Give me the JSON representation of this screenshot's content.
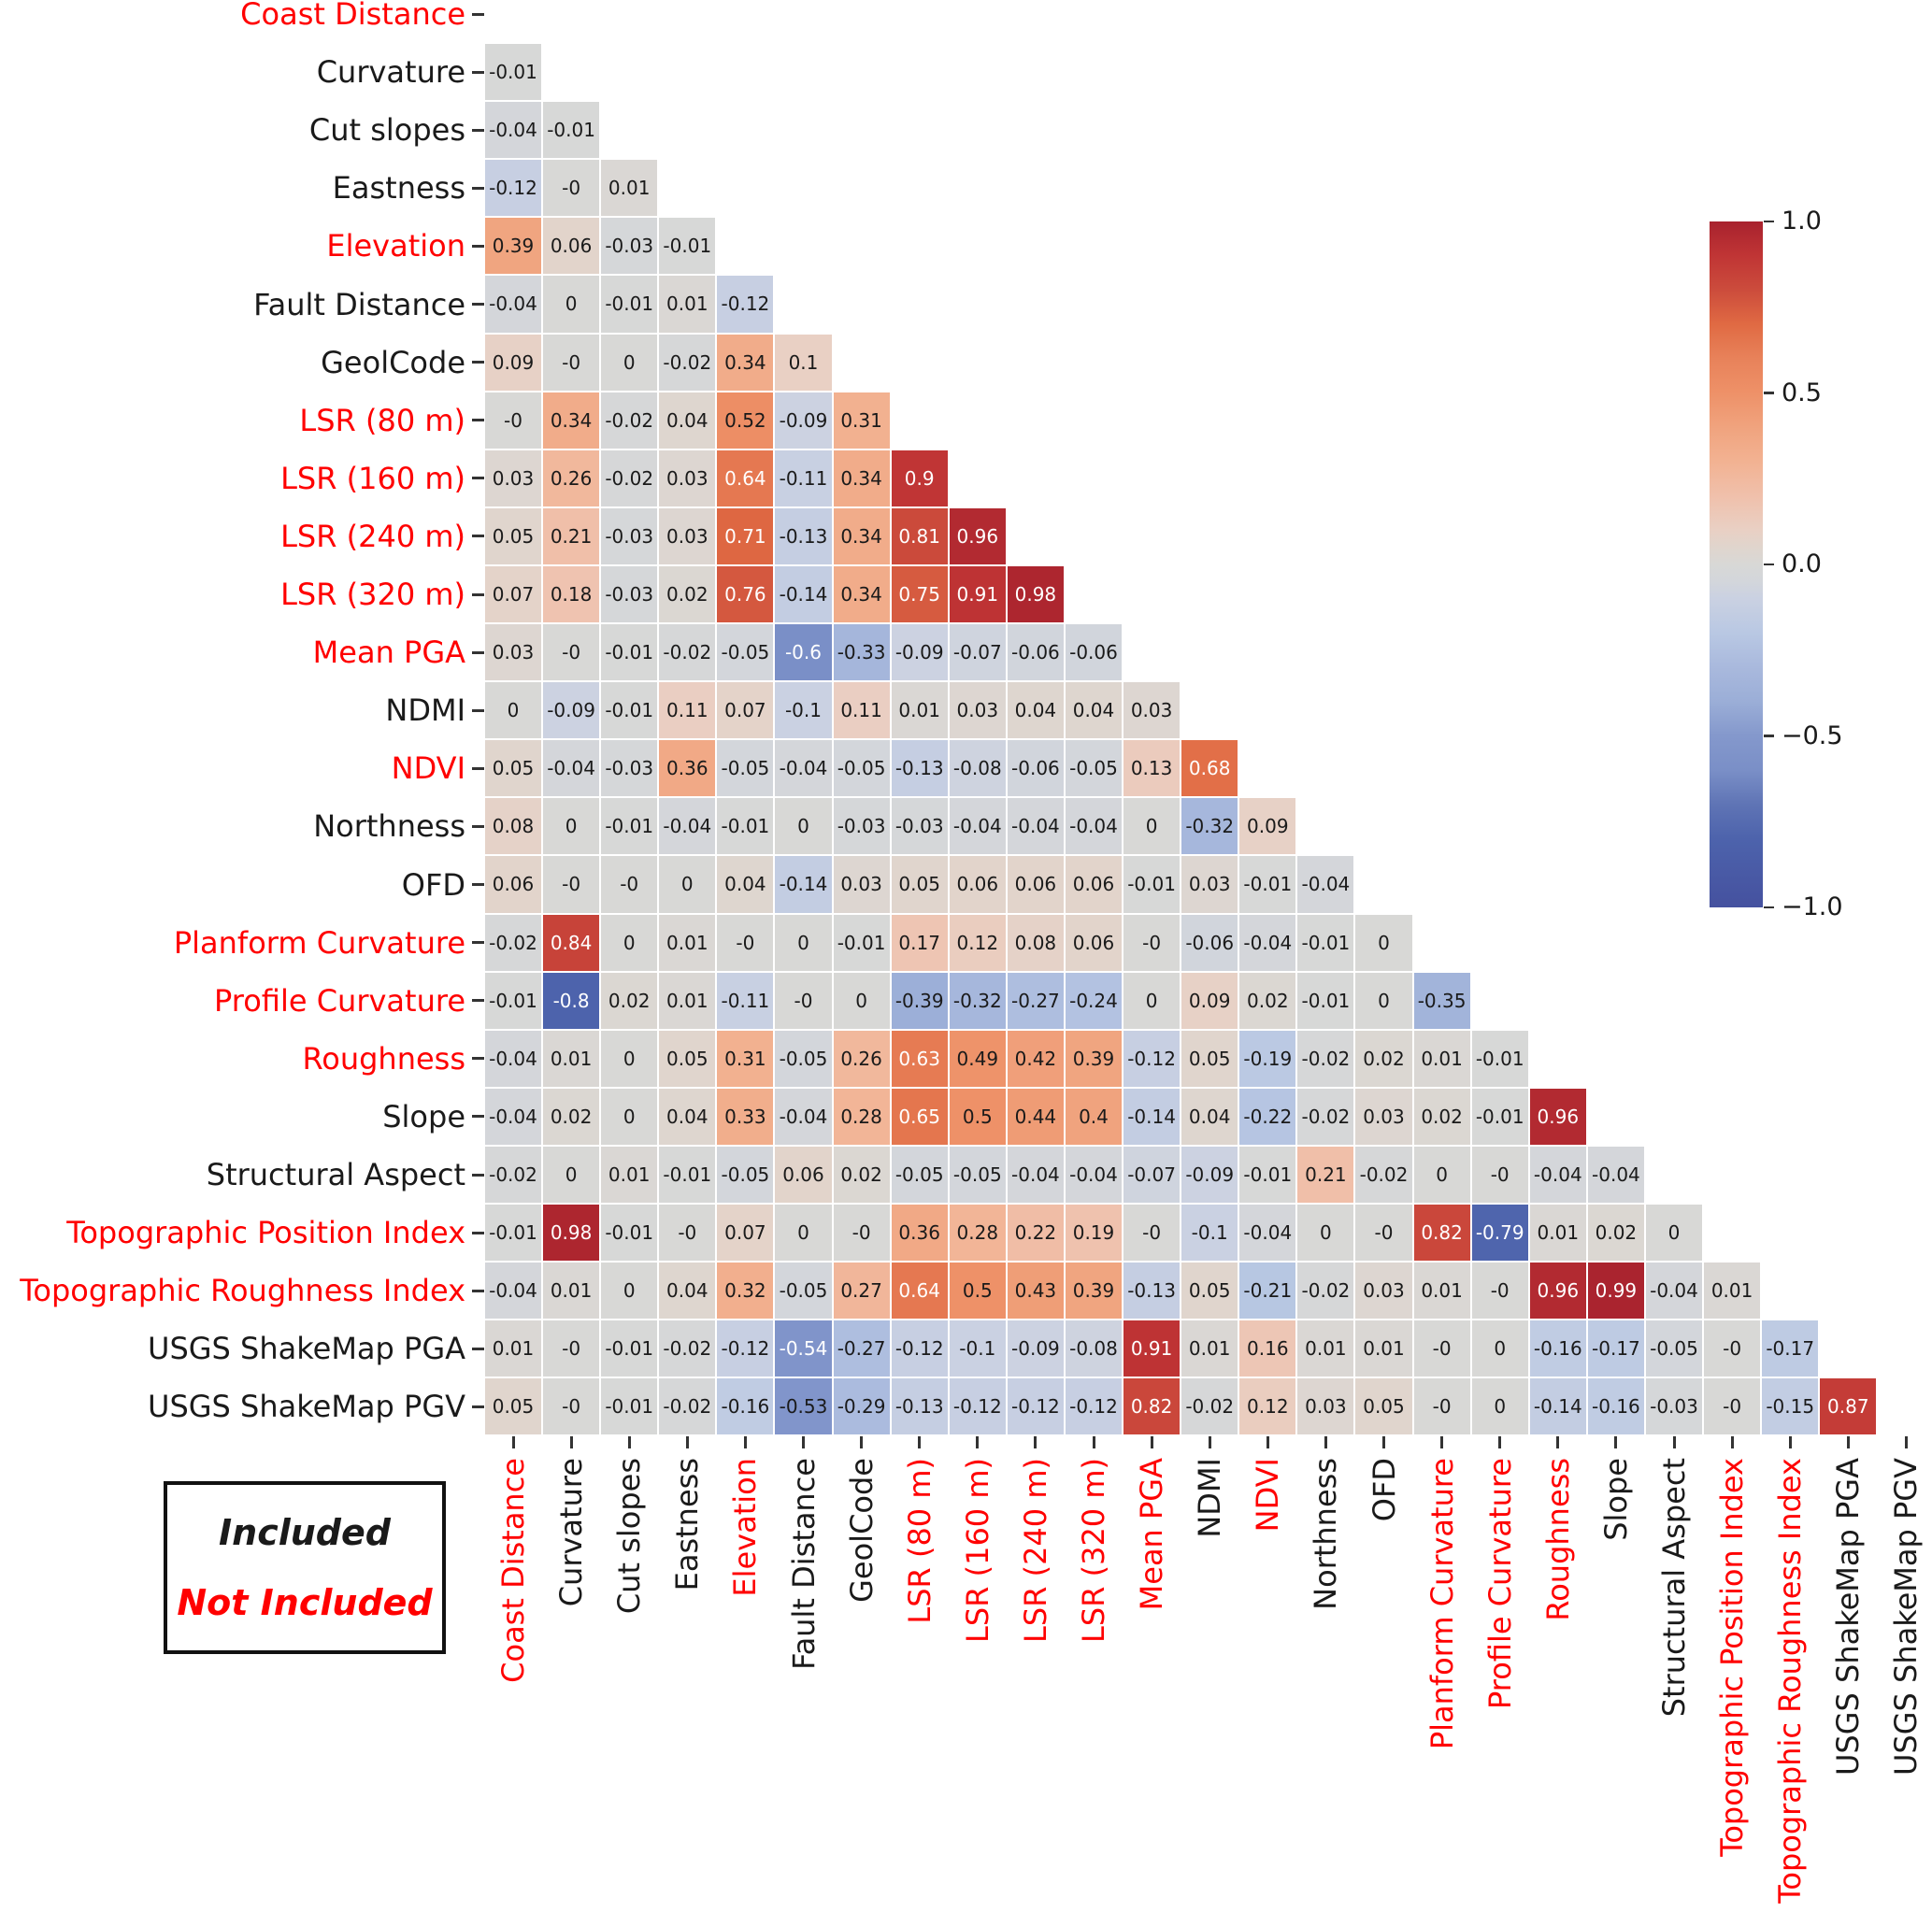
{
  "chart_data": {
    "type": "heatmap",
    "description": "Lower-triangular correlation matrix heatmap of 25 terrain and seismic variables",
    "vmin": -1,
    "vmax": 1,
    "variables": [
      {
        "label": "Coast Distance",
        "included": false
      },
      {
        "label": "Curvature",
        "included": true
      },
      {
        "label": "Cut slopes",
        "included": true
      },
      {
        "label": "Eastness",
        "included": true
      },
      {
        "label": "Elevation",
        "included": false
      },
      {
        "label": "Fault Distance",
        "included": true
      },
      {
        "label": "GeolCode",
        "included": true
      },
      {
        "label": "LSR (80 m)",
        "included": false
      },
      {
        "label": "LSR (160 m)",
        "included": false
      },
      {
        "label": "LSR (240 m)",
        "included": false
      },
      {
        "label": "LSR (320 m)",
        "included": false
      },
      {
        "label": "Mean PGA",
        "included": false
      },
      {
        "label": "NDMI",
        "included": true
      },
      {
        "label": "NDVI",
        "included": false
      },
      {
        "label": "Northness",
        "included": true
      },
      {
        "label": "OFD",
        "included": true
      },
      {
        "label": "Planform Curvature",
        "included": false
      },
      {
        "label": "Profile Curvature",
        "included": false
      },
      {
        "label": "Roughness",
        "included": false
      },
      {
        "label": "Slope",
        "included": true
      },
      {
        "label": "Structural Aspect",
        "included": true
      },
      {
        "label": "Topographic Position Index",
        "included": false
      },
      {
        "label": "Topographic Roughness Index",
        "included": false
      },
      {
        "label": "USGS ShakeMap PGA",
        "included": true
      },
      {
        "label": "USGS ShakeMap PGV",
        "included": true
      }
    ],
    "rows": [
      {
        "label": "Curvature",
        "values": [
          "-0.01"
        ]
      },
      {
        "label": "Cut slopes",
        "values": [
          "-0.04",
          "-0.01"
        ]
      },
      {
        "label": "Eastness",
        "values": [
          "-0.12",
          "-0",
          "0.01"
        ]
      },
      {
        "label": "Elevation",
        "values": [
          "0.39",
          "0.06",
          "-0.03",
          "-0.01"
        ]
      },
      {
        "label": "Fault Distance",
        "values": [
          "-0.04",
          "0",
          "-0.01",
          "0.01",
          "-0.12"
        ]
      },
      {
        "label": "GeolCode",
        "values": [
          "0.09",
          "-0",
          "0",
          "-0.02",
          "0.34",
          "0.1"
        ]
      },
      {
        "label": "LSR (80 m)",
        "values": [
          "-0",
          "0.34",
          "-0.02",
          "0.04",
          "0.52",
          "-0.09",
          "0.31"
        ]
      },
      {
        "label": "LSR (160 m)",
        "values": [
          "0.03",
          "0.26",
          "-0.02",
          "0.03",
          "0.64",
          "-0.11",
          "0.34",
          "0.9"
        ]
      },
      {
        "label": "LSR (240 m)",
        "values": [
          "0.05",
          "0.21",
          "-0.03",
          "0.03",
          "0.71",
          "-0.13",
          "0.34",
          "0.81",
          "0.96"
        ]
      },
      {
        "label": "LSR (320 m)",
        "values": [
          "0.07",
          "0.18",
          "-0.03",
          "0.02",
          "0.76",
          "-0.14",
          "0.34",
          "0.75",
          "0.91",
          "0.98"
        ]
      },
      {
        "label": "Mean PGA",
        "values": [
          "0.03",
          "-0",
          "-0.01",
          "-0.02",
          "-0.05",
          "-0.6",
          "-0.33",
          "-0.09",
          "-0.07",
          "-0.06",
          "-0.06"
        ]
      },
      {
        "label": "NDMI",
        "values": [
          "0",
          "-0.09",
          "-0.01",
          "0.11",
          "0.07",
          "-0.1",
          "0.11",
          "0.01",
          "0.03",
          "0.04",
          "0.04",
          "0.03"
        ]
      },
      {
        "label": "NDVI",
        "values": [
          "0.05",
          "-0.04",
          "-0.03",
          "0.36",
          "-0.05",
          "-0.04",
          "-0.05",
          "-0.13",
          "-0.08",
          "-0.06",
          "-0.05",
          "0.13",
          "0.68"
        ]
      },
      {
        "label": "Northness",
        "values": [
          "0.08",
          "0",
          "-0.01",
          "-0.04",
          "-0.01",
          "0",
          "-0.03",
          "-0.03",
          "-0.04",
          "-0.04",
          "-0.04",
          "0",
          "-0.32",
          "0.09"
        ]
      },
      {
        "label": "OFD",
        "values": [
          "0.06",
          "-0",
          "-0",
          "0",
          "0.04",
          "-0.14",
          "0.03",
          "0.05",
          "0.06",
          "0.06",
          "0.06",
          "-0.01",
          "0.03",
          "-0.01",
          "-0.04"
        ]
      },
      {
        "label": "Planform Curvature",
        "values": [
          "-0.02",
          "0.84",
          "0",
          "0.01",
          "-0",
          "0",
          "-0.01",
          "0.17",
          "0.12",
          "0.08",
          "0.06",
          "-0",
          "-0.06",
          "-0.04",
          "-0.01",
          "0"
        ]
      },
      {
        "label": "Profile Curvature",
        "values": [
          "-0.01",
          "-0.8",
          "0.02",
          "0.01",
          "-0.11",
          "-0",
          "0",
          "-0.39",
          "-0.32",
          "-0.27",
          "-0.24",
          "0",
          "0.09",
          "0.02",
          "-0.01",
          "0",
          "-0.35"
        ]
      },
      {
        "label": "Roughness",
        "values": [
          "-0.04",
          "0.01",
          "0",
          "0.05",
          "0.31",
          "-0.05",
          "0.26",
          "0.63",
          "0.49",
          "0.42",
          "0.39",
          "-0.12",
          "0.05",
          "-0.19",
          "-0.02",
          "0.02",
          "0.01",
          "-0.01"
        ]
      },
      {
        "label": "Slope",
        "values": [
          "-0.04",
          "0.02",
          "0",
          "0.04",
          "0.33",
          "-0.04",
          "0.28",
          "0.65",
          "0.5",
          "0.44",
          "0.4",
          "-0.14",
          "0.04",
          "-0.22",
          "-0.02",
          "0.03",
          "0.02",
          "-0.01",
          "0.96"
        ]
      },
      {
        "label": "Structural Aspect",
        "values": [
          "-0.02",
          "0",
          "0.01",
          "-0.01",
          "-0.05",
          "0.06",
          "0.02",
          "-0.05",
          "-0.05",
          "-0.04",
          "-0.04",
          "-0.07",
          "-0.09",
          "-0.01",
          "0.21",
          "-0.02",
          "0",
          "-0",
          "-0.04",
          "-0.04"
        ]
      },
      {
        "label": "Topographic Position Index",
        "values": [
          "-0.01",
          "0.98",
          "-0.01",
          "-0",
          "0.07",
          "0",
          "-0",
          "0.36",
          "0.28",
          "0.22",
          "0.19",
          "-0",
          "-0.1",
          "-0.04",
          "0",
          "-0",
          "0.82",
          "-0.79",
          "0.01",
          "0.02",
          "0"
        ]
      },
      {
        "label": "Topographic Roughness Index",
        "values": [
          "-0.04",
          "0.01",
          "0",
          "0.04",
          "0.32",
          "-0.05",
          "0.27",
          "0.64",
          "0.5",
          "0.43",
          "0.39",
          "-0.13",
          "0.05",
          "-0.21",
          "-0.02",
          "0.03",
          "0.01",
          "-0",
          "0.96",
          "0.99",
          "-0.04",
          "0.01"
        ]
      },
      {
        "label": "USGS ShakeMap PGA",
        "values": [
          "0.01",
          "-0",
          "-0.01",
          "-0.02",
          "-0.12",
          "-0.54",
          "-0.27",
          "-0.12",
          "-0.1",
          "-0.09",
          "-0.08",
          "0.91",
          "0.01",
          "0.16",
          "0.01",
          "0.01",
          "-0",
          "0",
          "-0.16",
          "-0.17",
          "-0.05",
          "-0",
          "-0.17"
        ]
      },
      {
        "label": "USGS ShakeMap PGV",
        "values": [
          "0.05",
          "-0",
          "-0.01",
          "-0.02",
          "-0.16",
          "-0.53",
          "-0.29",
          "-0.13",
          "-0.12",
          "-0.12",
          "-0.12",
          "0.82",
          "-0.02",
          "0.12",
          "0.03",
          "0.05",
          "-0",
          "0",
          "-0.14",
          "-0.16",
          "-0.03",
          "-0",
          "-0.15",
          "0.87"
        ]
      }
    ],
    "colorbar": {
      "ticks": [
        {
          "label": "1.0",
          "value": 1.0
        },
        {
          "label": "0.5",
          "value": 0.5
        },
        {
          "label": "0.0",
          "value": 0.0
        },
        {
          "label": "−0.5",
          "value": -0.5
        },
        {
          "label": "−1.0",
          "value": -1.0
        }
      ]
    },
    "palette": [
      [
        -1.0,
        "#45519f"
      ],
      [
        -0.8,
        "#4d63ac"
      ],
      [
        -0.7,
        "#5f74b5"
      ],
      [
        -0.6,
        "#7a8fc7"
      ],
      [
        -0.5,
        "#8498cc"
      ],
      [
        -0.4,
        "#9baed7"
      ],
      [
        -0.3,
        "#a9b9dd"
      ],
      [
        -0.2,
        "#b9c8e3"
      ],
      [
        -0.1,
        "#cad1e2"
      ],
      [
        -0.05,
        "#d3d6db"
      ],
      [
        0.0,
        "#d8d8d6"
      ],
      [
        0.05,
        "#e0d5cd"
      ],
      [
        0.1,
        "#e9d0c4"
      ],
      [
        0.2,
        "#f0c0ab"
      ],
      [
        0.3,
        "#f2b292"
      ],
      [
        0.4,
        "#f0a37e"
      ],
      [
        0.5,
        "#ee9168"
      ],
      [
        0.6,
        "#e8825a"
      ],
      [
        0.7,
        "#e06a43"
      ],
      [
        0.8,
        "#cc4c3c"
      ],
      [
        0.9,
        "#c03535"
      ],
      [
        1.0,
        "#a8222e"
      ]
    ]
  },
  "legend": {
    "included_label": "Included",
    "not_included_label": "Not Included"
  },
  "colors": {
    "label_included": "#1a1a1a",
    "label_not_included": "#ff0000",
    "cell_text_dark": "#1a1a1a",
    "cell_text_light": "#ffffff",
    "tick": "#333333",
    "legend_border": "#111111"
  }
}
